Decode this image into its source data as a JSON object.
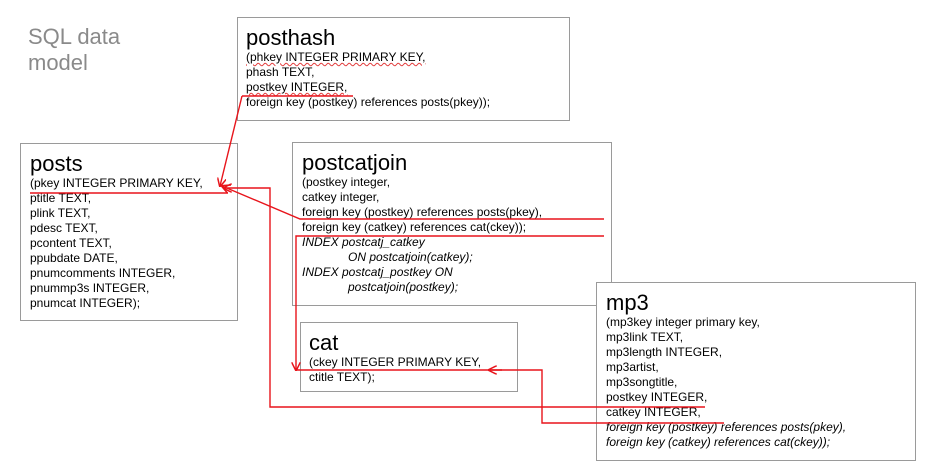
{
  "slide_title": "SQL data\nmodel",
  "tables": {
    "posthash": {
      "name": "posthash",
      "lines": [
        "(phkey INTEGER PRIMARY KEY,",
        "phash TEXT,",
        "postkey INTEGER,",
        "foreign key (postkey) references posts(pkey));"
      ]
    },
    "posts": {
      "name": "posts",
      "lines": [
        "(pkey INTEGER PRIMARY KEY,",
        "ptitle TEXT,",
        "plink TEXT,",
        "pdesc TEXT,",
        "pcontent TEXT,",
        "ppubdate DATE,",
        "pnumcomments INTEGER,",
        "pnummp3s INTEGER,",
        "pnumcat INTEGER);"
      ]
    },
    "postcatjoin": {
      "name": "postcatjoin",
      "lines": [
        "(postkey integer,",
        "catkey integer,",
        "foreign key (postkey) references posts(pkey),",
        "foreign key (catkey) references cat(ckey));",
        "INDEX postcatj_catkey",
        "ON postcatjoin(catkey);",
        "INDEX postcatj_postkey ON",
        "postcatjoin(postkey);"
      ]
    },
    "cat": {
      "name": "cat",
      "lines": [
        "(ckey INTEGER PRIMARY KEY,",
        "ctitle TEXT);"
      ]
    },
    "mp3": {
      "name": "mp3",
      "lines": [
        "(mp3key integer primary key,",
        "mp3link TEXT,",
        "mp3length INTEGER,",
        "mp3artist,",
        "mp3songtitle,",
        "postkey INTEGER,",
        "catkey INTEGER,",
        "foreign key (postkey) references posts(pkey),",
        "foreign key (catkey) references cat(ckey));"
      ]
    }
  },
  "colors": {
    "relation_line": "#e8141b",
    "box_border": "#9a9a9a",
    "title_gray": "#8a8a8a"
  },
  "relations": [
    {
      "from": "posthash.postkey",
      "to": "posts.pkey"
    },
    {
      "from": "postcatjoin.postkey",
      "to": "posts.pkey"
    },
    {
      "from": "postcatjoin.catkey",
      "to": "cat.ckey"
    },
    {
      "from": "mp3.postkey",
      "to": "posts.pkey"
    },
    {
      "from": "mp3.catkey",
      "to": "cat.ckey"
    }
  ]
}
